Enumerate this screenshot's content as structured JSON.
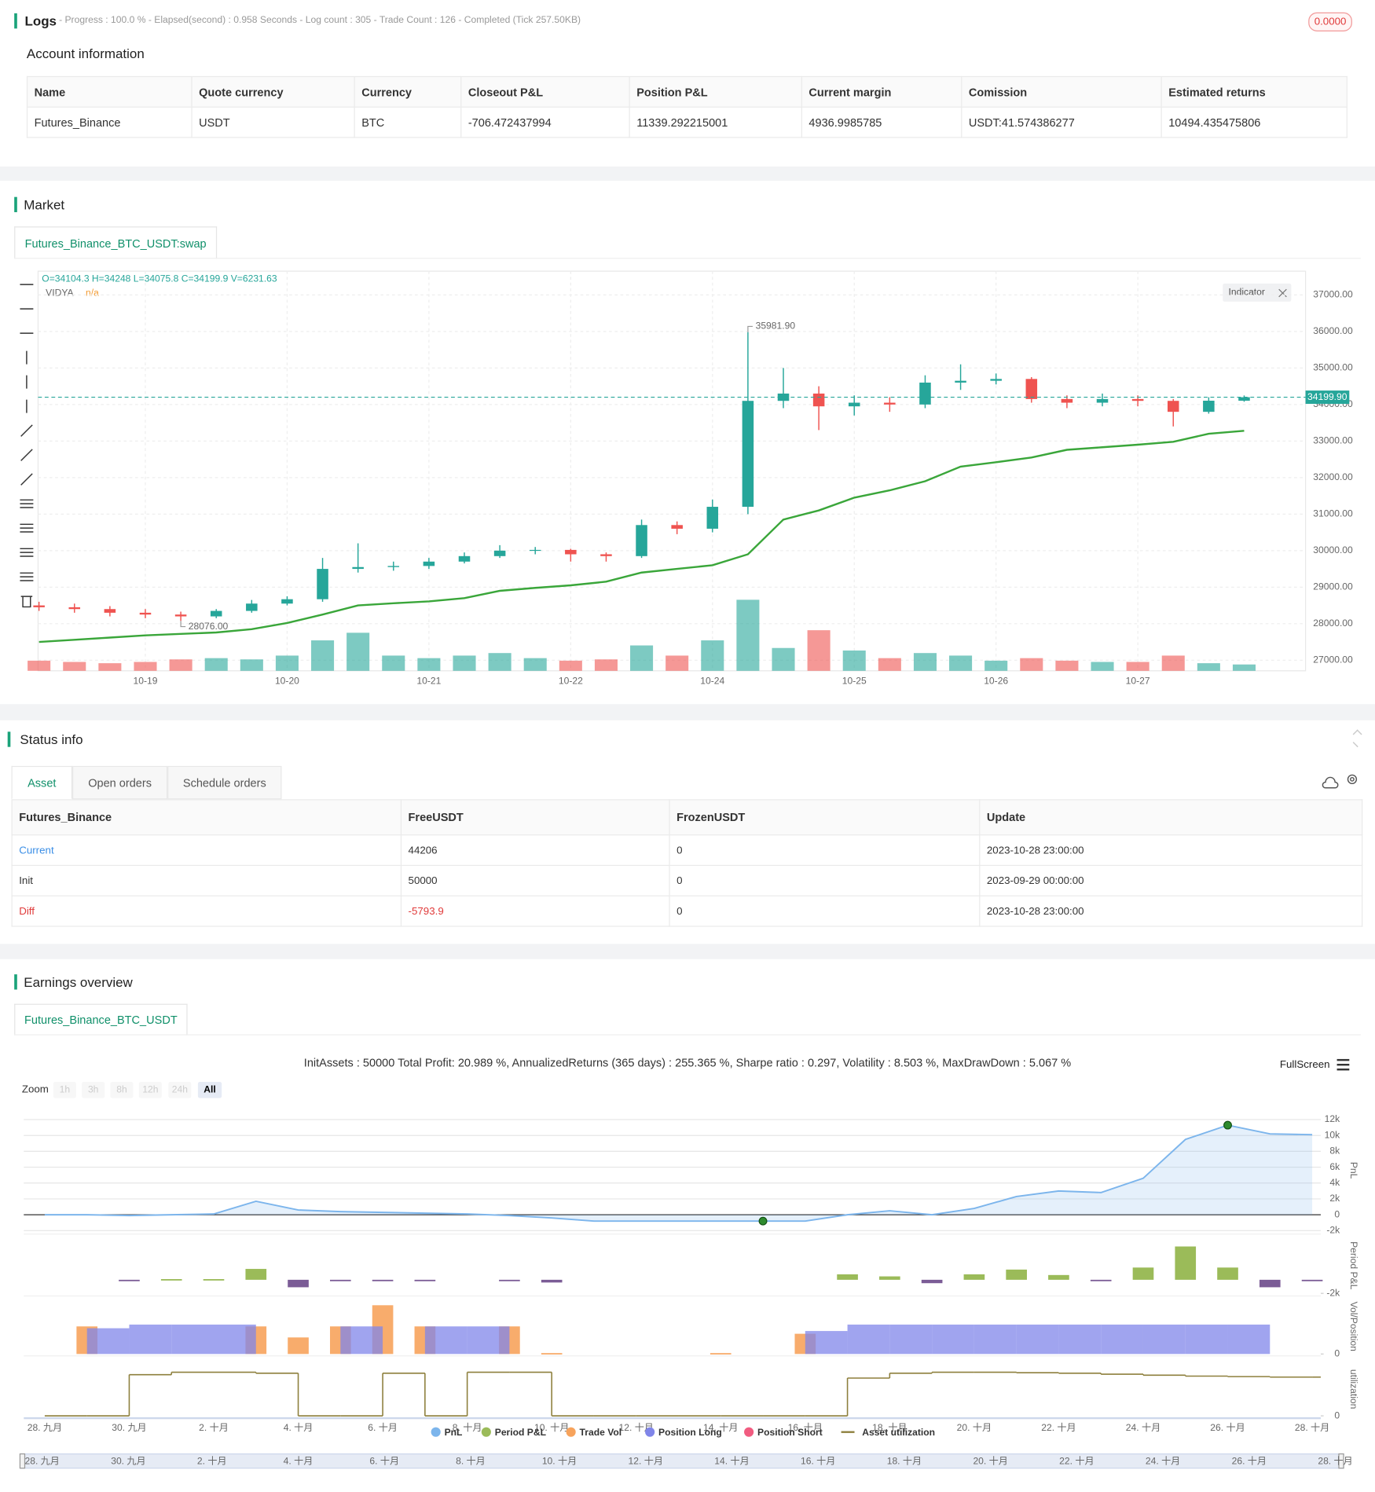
{
  "logs": {
    "title": "Logs",
    "status": "- Progress : 100.0 % - Elapsed(second) : 0.958  Seconds - Log count : 305 - Trade Count : 126 - Completed (Tick 257.50KB)",
    "badge": "0.0000"
  },
  "account": {
    "title": "Account information",
    "columns": [
      "Name",
      "Quote currency",
      "Currency",
      "Closeout P&L",
      "Position P&L",
      "Current margin",
      "Comission",
      "Estimated returns"
    ],
    "rows": [
      [
        "Futures_Binance",
        "USDT",
        "BTC",
        -706.472437994,
        11339.292215001,
        4936.9985785,
        "USDT:41.574386277",
        10494.435475806
      ]
    ]
  },
  "market": {
    "title": "Market",
    "tab": "Futures_Binance_BTC_USDT:swap",
    "chart_data": {
      "type": "candlestick",
      "ohlc_text": "O=34104.3 H=34248 L=34075.8 C=34199.9 V=6231.63",
      "indicator_button": "Indicator",
      "indicator_value": "n/a",
      "categories": [
        null,
        null,
        null,
        "10-19",
        null,
        null,
        null,
        "10-20",
        null,
        null,
        null,
        "10-21",
        null,
        null,
        null,
        "10-22",
        null,
        null,
        null,
        "10-24",
        null,
        null,
        null,
        "10-25",
        null,
        null,
        null,
        "10-26",
        null,
        null,
        null,
        "10-27",
        null,
        null,
        null
      ],
      "open": [
        28500,
        28450,
        28400,
        28300,
        28250,
        28200,
        28350,
        28550,
        28670,
        29500,
        29550,
        29580,
        29700,
        29850,
        30000,
        30020,
        29900,
        29850,
        30700,
        30600,
        31200,
        34100,
        34300,
        33950,
        34050,
        34000,
        34600,
        34650,
        34700,
        34150,
        34050,
        34150,
        34100,
        33800,
        34104.3
      ],
      "high": [
        28600,
        28550,
        28480,
        28400,
        28330,
        28400,
        28650,
        28750,
        29800,
        30200,
        29700,
        29800,
        29950,
        30150,
        30100,
        30050,
        29950,
        30850,
        30800,
        31400,
        35981.9,
        35000,
        34500,
        34250,
        34200,
        34800,
        35100,
        34850,
        34750,
        34250,
        34300,
        34250,
        34150,
        34200,
        34248
      ],
      "low": [
        28350,
        28300,
        28200,
        28150,
        28076,
        28150,
        28300,
        28500,
        28600,
        29400,
        29450,
        29500,
        29650,
        29800,
        29900,
        29700,
        29700,
        29800,
        30450,
        30500,
        31000,
        33900,
        33300,
        33700,
        33800,
        33900,
        34400,
        34550,
        34050,
        33900,
        33950,
        33950,
        33400,
        33750,
        34075.8
      ],
      "close": [
        28450,
        28400,
        28300,
        28250,
        28200,
        28350,
        28550,
        28670,
        29500,
        29550,
        29580,
        29700,
        29850,
        30000,
        30020,
        29900,
        29850,
        30700,
        30600,
        31200,
        34100,
        34300,
        33950,
        34050,
        34000,
        34600,
        34650,
        34700,
        34150,
        34050,
        34150,
        34100,
        33800,
        34104.3,
        34199.9
      ],
      "volume": [
        4000,
        3500,
        3000,
        3500,
        4500,
        5000,
        4500,
        6000,
        12000,
        15000,
        6000,
        5000,
        6000,
        7000,
        5000,
        4000,
        4500,
        10000,
        6000,
        12000,
        28000,
        9000,
        16000,
        8000,
        5000,
        7000,
        6000,
        4000,
        5000,
        4000,
        3500,
        3500,
        6000,
        3000,
        2500
      ],
      "vlim": [
        0,
        30000
      ],
      "up_color": "#26a69a",
      "down_color": "#ef5350",
      "series": [
        {
          "name": "VIDYA",
          "color": "#3aa63a",
          "values": [
            27500,
            27560,
            27620,
            27680,
            27720,
            27760,
            27850,
            28020,
            28250,
            28500,
            28560,
            28610,
            28700,
            28900,
            28980,
            29050,
            29150,
            29400,
            29500,
            29600,
            29900,
            30850,
            31100,
            31450,
            31650,
            31900,
            32300,
            32420,
            32550,
            32760,
            32830,
            32900,
            32980,
            33200,
            33280
          ]
        }
      ],
      "annotations": [
        {
          "value": 35981.9,
          "label": "35981.90"
        },
        {
          "value": 28076,
          "label": "28076.00"
        }
      ],
      "last_price": {
        "value": 34199.9,
        "label": "34199.90"
      },
      "ylim": [
        26710,
        37650
      ],
      "yticks": [
        {
          "value": 27000,
          "label": "27000.00"
        },
        {
          "value": 28000,
          "label": "28000.00"
        },
        {
          "value": 29000,
          "label": "29000.00"
        },
        {
          "value": 30000,
          "label": "30000.00"
        },
        {
          "value": 31000,
          "label": "31000.00"
        },
        {
          "value": 32000,
          "label": "32000.00"
        },
        {
          "value": 33000,
          "label": "33000.00"
        },
        {
          "value": 34000,
          "label": "34000.00"
        },
        {
          "value": 35000,
          "label": "35000.00"
        },
        {
          "value": 36000,
          "label": "36000.00"
        },
        {
          "value": 37000,
          "label": "37000.00"
        }
      ],
      "grid": true
    }
  },
  "status": {
    "title": "Status info",
    "tabs": [
      "Asset",
      "Open orders",
      "Schedule orders"
    ],
    "columns": [
      "Futures_Binance",
      "FreeUSDT",
      "FrozenUSDT",
      "Update"
    ],
    "rows": [
      [
        "Current",
        44206,
        0,
        "2023-10-28 23:00:00"
      ],
      [
        "Init",
        50000,
        0,
        "2023-09-29 00:00:00"
      ],
      [
        "Diff",
        -5793.9,
        0,
        "2023-10-28 23:00:00"
      ]
    ]
  },
  "earnings": {
    "title": "Earnings overview",
    "tab": "Futures_Binance_BTC_USDT",
    "summary": "InitAssets : 50000 Total Profit: 20.989 %, AnnualizedReturns (365 days) : 255.365 %, Sharpe ratio : 0.297, Volatility : 8.503 %, MaxDrawDown : 5.067 %",
    "fullscreen": "FullScreen",
    "zoom_label": "Zoom",
    "zoom_buttons": [
      "1h",
      "3h",
      "8h",
      "12h",
      "24h",
      "All"
    ],
    "chart_data": {
      "type": "panels",
      "legend": "bottom",
      "categories": [
        "28. 九月",
        null,
        "30. 九月",
        null,
        "2. 十月",
        null,
        "4. 十月",
        null,
        "6. 十月",
        null,
        "8. 十月",
        null,
        "10. 十月",
        null,
        "12. 十月",
        null,
        "14. 十月",
        null,
        "16. 十月",
        null,
        "18. 十月",
        null,
        "20. 十月",
        null,
        "22. 十月",
        null,
        "24. 十月",
        null,
        "26. 十月",
        null,
        "28. 十月"
      ],
      "panels": [
        {
          "title": "PnL",
          "ylim": [
            -2200,
            13400
          ],
          "yticks": [
            {
              "value": -2000,
              "label": "-2k"
            },
            0,
            {
              "value": 2000,
              "label": "2k"
            },
            {
              "value": 4000,
              "label": "4k"
            },
            {
              "value": 6000,
              "label": "6k"
            },
            {
              "value": 8000,
              "label": "8k"
            },
            {
              "value": 10000,
              "label": "10k"
            },
            {
              "value": 12000,
              "label": "12k"
            }
          ]
        },
        {
          "title": "Period P&L",
          "ylim": [
            -2100,
            6300
          ],
          "yticks": [
            {
              "value": -2000,
              "label": "-2k"
            }
          ]
        },
        {
          "title": "Vol/Position",
          "ylim": [
            0,
            60
          ],
          "yticks": [
            0
          ]
        },
        {
          "title": "utilization",
          "ylim": [
            0,
            1.1
          ],
          "yticks": [
            0
          ]
        }
      ],
      "series": [
        {
          "name": "PnL",
          "type": "area",
          "panel": 0,
          "color": "#7cb5ec",
          "values": [
            0,
            0,
            -100,
            0,
            100,
            1700,
            600,
            400,
            300,
            200,
            100,
            -100,
            -400,
            -800,
            -800,
            -800,
            -800,
            -800,
            -800,
            0,
            500,
            0,
            800,
            2300,
            3000,
            2800,
            4600,
            9500,
            11300,
            10200,
            10100
          ]
        },
        {
          "name": "Period P&L",
          "type": "column",
          "panel": 1,
          "color": "#9bbb59",
          "negative_color": "#7b5c96",
          "values": [
            null,
            null,
            -100,
            100,
            100,
            1600,
            -1100,
            -100,
            -100,
            -100,
            null,
            -100,
            -400,
            null,
            null,
            null,
            null,
            null,
            null,
            800,
            500,
            -500,
            800,
            1500,
            700,
            -200,
            1800,
            4900,
            1800,
            -1100,
            -100
          ]
        },
        {
          "name": "Trade Vol",
          "type": "column",
          "panel": 2,
          "color": "#f7a35c",
          "values": [
            0,
            30,
            0,
            0,
            0,
            30,
            18,
            30,
            53,
            30,
            0,
            30,
            1,
            0,
            0,
            0,
            1,
            0,
            22,
            0,
            0,
            0,
            0,
            0,
            0,
            0,
            0,
            0,
            0,
            0,
            0
          ]
        },
        {
          "name": "Position Long",
          "type": "step-area",
          "panel": 2,
          "color": "#8085e9",
          "values": [
            0,
            28,
            32,
            32,
            32,
            0,
            0,
            30,
            0,
            30,
            30,
            0,
            0,
            0,
            0,
            0,
            0,
            0,
            25,
            32,
            32,
            32,
            32,
            32,
            32,
            32,
            32,
            32,
            32,
            0,
            0
          ]
        },
        {
          "name": "Position Short",
          "type": "step-area",
          "panel": 2,
          "color": "#f15c80",
          "values": [
            0,
            0,
            0,
            0,
            0,
            0,
            0,
            0,
            0,
            0,
            0,
            0,
            0,
            0,
            0,
            0,
            0,
            0,
            0,
            0,
            0,
            0,
            0,
            0,
            0,
            0,
            0,
            0,
            0,
            0,
            0
          ]
        },
        {
          "name": "Asset utilization",
          "type": "step-line",
          "panel": 3,
          "color": "#8d7f3c",
          "values": [
            0,
            0,
            0.85,
            0.9,
            0.9,
            0.88,
            0,
            0,
            0.88,
            0,
            0.9,
            0.9,
            0,
            0,
            0,
            0,
            0,
            0,
            0,
            0.78,
            0.88,
            0.9,
            0.9,
            0.89,
            0.88,
            0.86,
            0.84,
            0.82,
            0.81,
            0.8,
            0.8
          ]
        }
      ]
    }
  }
}
